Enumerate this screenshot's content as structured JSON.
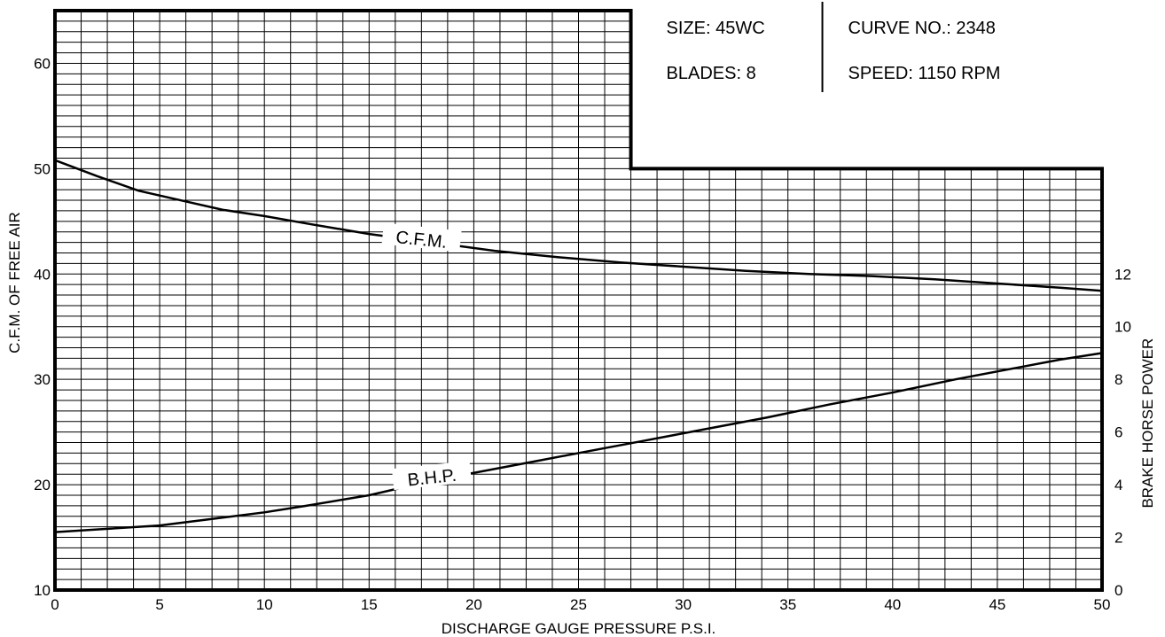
{
  "chart_data": {
    "type": "line",
    "xlabel": "DISCHARGE GAUGE PRESSURE P.S.I.",
    "ylabel_left": "C.F.M. OF FREE AIR",
    "ylabel_right": "BRAKE HORSE POWER",
    "xlim": [
      0,
      50
    ],
    "ylim_left": [
      10,
      65
    ],
    "ylim_right": [
      0,
      12
    ],
    "x_ticks": [
      0,
      5,
      10,
      15,
      20,
      25,
      30,
      35,
      40,
      45,
      50
    ],
    "y_left_ticks": [
      10,
      20,
      30,
      40,
      50,
      60
    ],
    "y_right_ticks": [
      0,
      2,
      4,
      6,
      8,
      10,
      12
    ],
    "grid": true,
    "info": {
      "size": "SIZE: 45WC",
      "blades": "BLADES:  8",
      "curve_no": "CURVE NO.:  2348",
      "speed": "SPEED: 1150 RPM"
    },
    "series": [
      {
        "name": "C.F.M.",
        "axis": "left",
        "x": [
          0,
          2,
          4,
          6,
          8,
          10,
          12,
          15,
          18,
          21,
          24,
          27,
          30,
          33,
          36,
          39,
          42,
          45,
          48,
          50
        ],
        "y": [
          50.8,
          49.3,
          47.9,
          47.0,
          46.1,
          45.5,
          44.8,
          43.8,
          43.0,
          42.2,
          41.6,
          41.1,
          40.7,
          40.3,
          40.0,
          39.8,
          39.5,
          39.1,
          38.7,
          38.4
        ]
      },
      {
        "name": "B.H.P.",
        "axis": "right",
        "x": [
          0,
          2,
          5,
          8,
          10,
          12,
          15,
          18,
          20,
          23,
          26,
          28,
          31,
          34,
          37,
          40,
          43,
          46,
          48,
          50
        ],
        "y": [
          2.2,
          2.3,
          2.45,
          2.75,
          2.95,
          3.2,
          3.6,
          4.15,
          4.45,
          4.9,
          5.35,
          5.65,
          6.1,
          6.55,
          7.05,
          7.5,
          8.0,
          8.45,
          8.75,
          9.0
        ]
      }
    ]
  }
}
